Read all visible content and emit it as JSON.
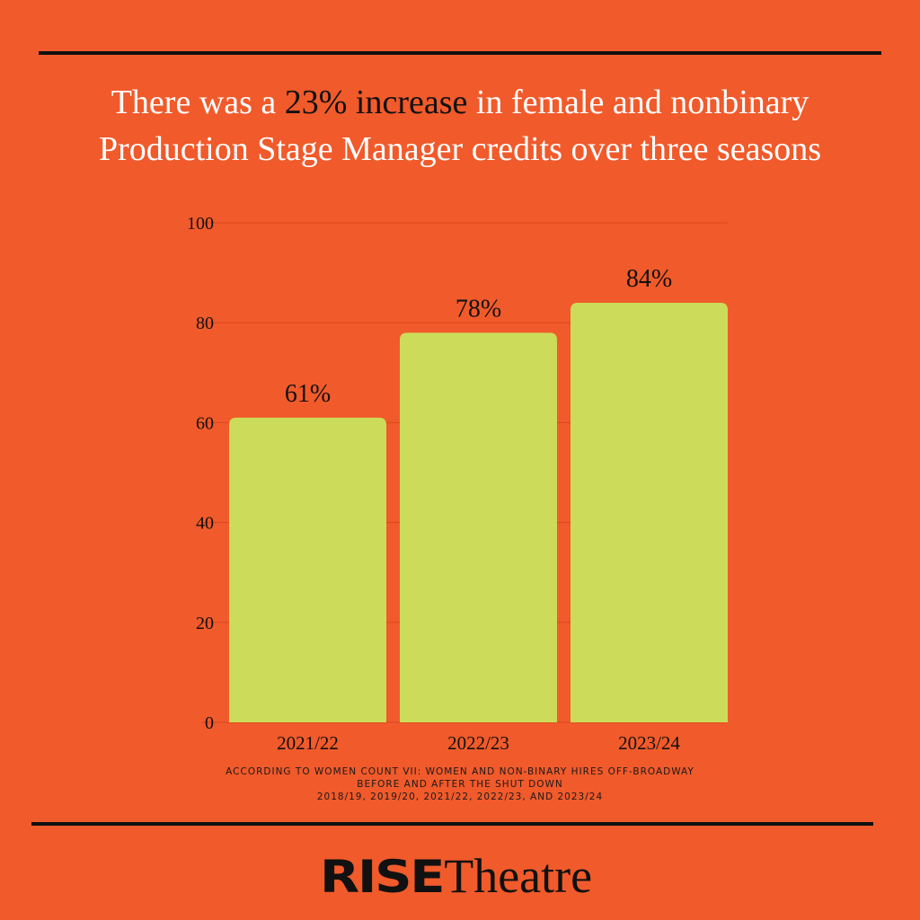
{
  "headline": {
    "before": "There was a ",
    "highlight": "23% increase",
    "after_line1": " in female and nonbinary",
    "line2": "Production Stage Manager credits  over three seasons"
  },
  "colors": {
    "background": "#f15a2b",
    "bar": "#ccdc5a",
    "gridline": "#d9481c",
    "text": "#111111",
    "headline_text": "#ffffff"
  },
  "chart_data": {
    "type": "bar",
    "categories": [
      "2021/22",
      "2022/23",
      "2023/24"
    ],
    "values": [
      61,
      78,
      84
    ],
    "value_labels": [
      "61%",
      "78%",
      "84%"
    ],
    "ylim": [
      0,
      100
    ],
    "yticks": [
      0,
      20,
      40,
      60,
      80,
      100
    ],
    "grid": true,
    "xlabel": "",
    "ylabel": ""
  },
  "source": {
    "line1": "ACCORDING TO WOMEN COUNT VII: WOMEN AND NON-BINARY HIRES OFF-BROADWAY",
    "line2": "BEFORE AND AFTER THE SHUT DOWN",
    "line3": "2018/19, 2019/20, 2021/22, 2022/23, AND 2023/24"
  },
  "logo": {
    "bold": "RISE",
    "serif": "Theatre"
  }
}
